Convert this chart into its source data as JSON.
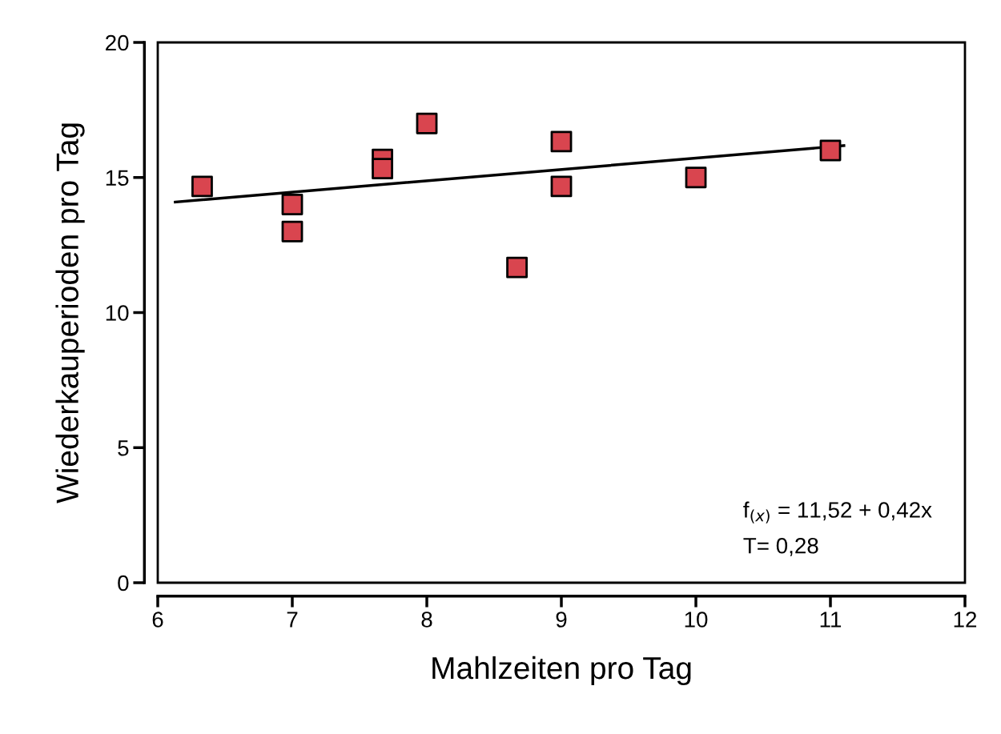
{
  "chart_data": {
    "type": "scatter",
    "xlabel": "Mahlzeiten pro Tag",
    "ylabel": "Wiederkauperioden pro Tag",
    "xlim": [
      6,
      12
    ],
    "xticks": [
      6,
      7,
      8,
      9,
      10,
      11,
      12
    ],
    "ylim": [
      0,
      20
    ],
    "yticks": [
      0,
      5,
      10,
      15,
      20
    ],
    "grid": false,
    "legend": false,
    "marker": "square",
    "series": [
      {
        "color": "#d9454f",
        "x": [
          6.33,
          7,
          7,
          7.67,
          7.67,
          8,
          8.67,
          9,
          9,
          10,
          11
        ],
        "values": [
          14.67,
          14,
          13,
          15.67,
          15.33,
          17,
          11.67,
          16.33,
          14.67,
          15,
          16
        ]
      },
      {
        "type": "line",
        "color": "#000000",
        "marker": "none",
        "line_style": "solid",
        "x": [
          6.13,
          11.1
        ],
        "values": [
          14.09,
          16.18
        ]
      }
    ],
    "annotations": [
      "f$_{(x)}$ = 11,52 + 0,42x",
      "T= 0,28"
    ]
  }
}
